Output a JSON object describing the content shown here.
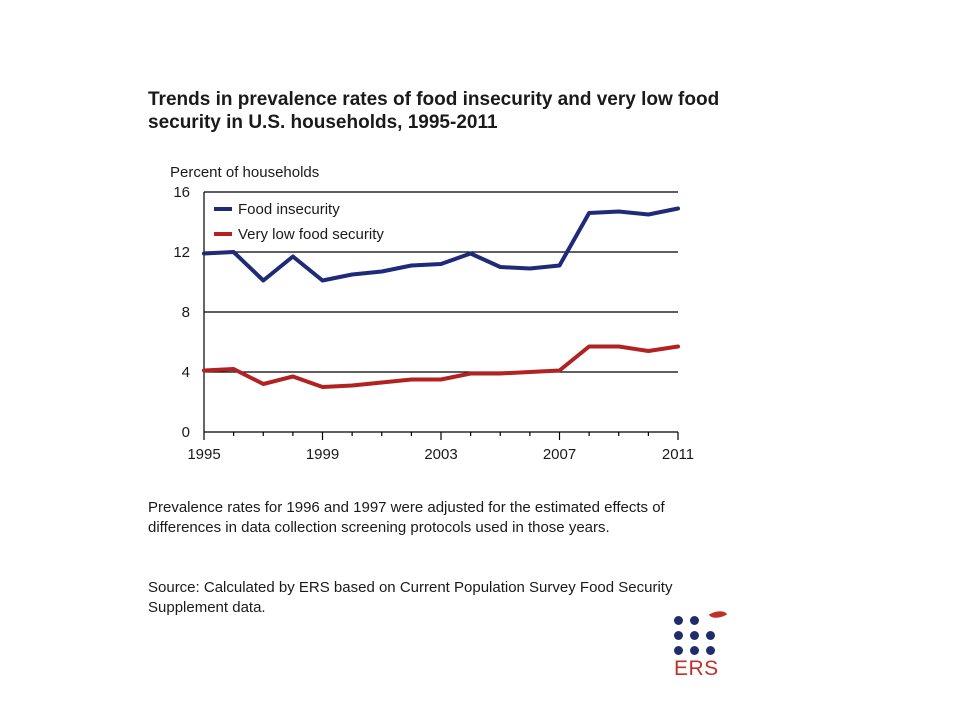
{
  "title": "Trends in prevalence rates of food insecurity and very low food security in U.S. households, 1995-2011",
  "note": "Prevalence rates for 1996 and 1997 were adjusted for the estimated effects of differences in data collection screening protocols used in those years.",
  "source": "Source: Calculated by ERS based on Current Population Survey Food Security Supplement data.",
  "logo": {
    "text": "ERS"
  },
  "colors": {
    "food_insecurity": "#1f2a78",
    "very_low": "#b22222",
    "grid": "#000000"
  },
  "chart_data": {
    "type": "line",
    "ylabel": "Percent of households",
    "xlabel": "",
    "xlim": [
      1995,
      2011
    ],
    "ylim": [
      0,
      16
    ],
    "yticks": [
      0,
      4,
      8,
      12,
      16
    ],
    "xticks": [
      "1995",
      "1999",
      "2003",
      "2007",
      "2011"
    ],
    "grid": "horizontal",
    "legend_position": "top-left",
    "x": [
      1995,
      1996,
      1997,
      1998,
      1999,
      2000,
      2001,
      2002,
      2003,
      2004,
      2005,
      2006,
      2007,
      2008,
      2009,
      2010,
      2011
    ],
    "series": [
      {
        "name": "Food insecurity",
        "color": "#1f2a78",
        "values": [
          11.9,
          12.0,
          10.1,
          11.7,
          10.1,
          10.5,
          10.7,
          11.1,
          11.2,
          11.9,
          11.0,
          10.9,
          11.1,
          14.6,
          14.7,
          14.5,
          14.9
        ]
      },
      {
        "name": "Very low food security",
        "color": "#b22222",
        "values": [
          4.1,
          4.2,
          3.2,
          3.7,
          3.0,
          3.1,
          3.3,
          3.5,
          3.5,
          3.9,
          3.9,
          4.0,
          4.1,
          5.7,
          5.7,
          5.4,
          5.7
        ]
      }
    ]
  }
}
